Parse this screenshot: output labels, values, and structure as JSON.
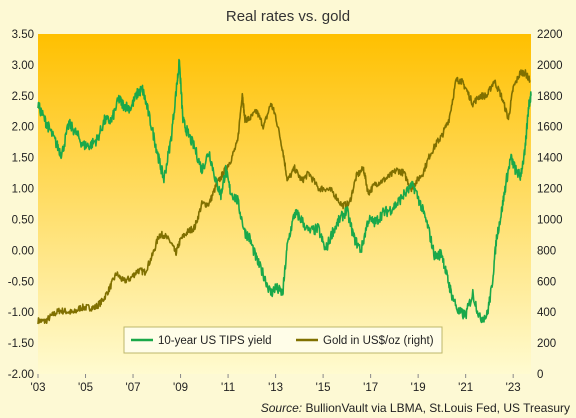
{
  "chart_data": {
    "type": "line",
    "title": "Real rates vs. gold",
    "source_label": "Source:",
    "source_text": "BullionVault via LBMA, St.Louis Fed, US Treasury",
    "x_ticks": [
      "'03",
      "'05",
      "'07",
      "'09",
      "'11",
      "'13",
      "'15",
      "'17",
      "'19",
      "'21",
      "'23"
    ],
    "x_range": [
      2003,
      2023.75
    ],
    "y_left": {
      "ylim": [
        -2.0,
        3.5
      ],
      "ticks": [
        "-2.00",
        "-1.50",
        "-1.00",
        "-0.50",
        "0.00",
        "0.50",
        "1.00",
        "1.50",
        "2.00",
        "2.50",
        "3.00",
        "3.50"
      ]
    },
    "y_right": {
      "ylim": [
        0,
        2200
      ],
      "ticks": [
        "0",
        "200",
        "400",
        "600",
        "800",
        "1000",
        "1200",
        "1400",
        "1600",
        "1800",
        "2000",
        "2200"
      ]
    },
    "legend_position": "bottom-center",
    "grid": false,
    "background_gradient": [
      "#ffc000",
      "#fffbd0"
    ],
    "series": [
      {
        "name": "10-year US TIPS yield",
        "axis": "left",
        "color": "#1aa84a",
        "x": [
          2003.0,
          2003.3,
          2003.5,
          2003.8,
          2004.0,
          2004.3,
          2004.6,
          2004.9,
          2005.2,
          2005.5,
          2005.8,
          2006.1,
          2006.4,
          2006.6,
          2006.9,
          2007.2,
          2007.4,
          2007.6,
          2007.9,
          2008.1,
          2008.3,
          2008.6,
          2008.85,
          2008.95,
          2009.1,
          2009.3,
          2009.6,
          2009.9,
          2010.2,
          2010.5,
          2010.7,
          2010.9,
          2011.1,
          2011.4,
          2011.7,
          2011.9,
          2012.2,
          2012.5,
          2012.8,
          2013.0,
          2013.3,
          2013.5,
          2013.8,
          2014.0,
          2014.4,
          2014.8,
          2015.1,
          2015.4,
          2015.7,
          2016.0,
          2016.3,
          2016.6,
          2016.9,
          2017.2,
          2017.5,
          2017.8,
          2018.1,
          2018.4,
          2018.8,
          2019.1,
          2019.4,
          2019.7,
          2020.0,
          2020.2,
          2020.4,
          2020.7,
          2021.0,
          2021.3,
          2021.6,
          2021.9,
          2022.1,
          2022.3,
          2022.5,
          2022.7,
          2022.9,
          2023.1,
          2023.3,
          2023.5,
          2023.65,
          2023.75
        ],
        "values": [
          2.35,
          2.1,
          1.95,
          1.7,
          1.55,
          2.05,
          1.9,
          1.7,
          1.7,
          1.8,
          2.1,
          2.1,
          2.45,
          2.35,
          2.3,
          2.55,
          2.6,
          2.3,
          1.8,
          1.45,
          1.15,
          1.8,
          2.7,
          3.05,
          2.1,
          1.9,
          1.65,
          1.3,
          1.6,
          1.1,
          0.9,
          1.3,
          0.95,
          0.8,
          0.3,
          0.2,
          -0.15,
          -0.4,
          -0.7,
          -0.6,
          -0.7,
          0.1,
          0.6,
          0.55,
          0.3,
          0.35,
          0.0,
          0.3,
          0.5,
          0.65,
          0.2,
          0.0,
          0.5,
          0.45,
          0.6,
          0.65,
          0.75,
          0.9,
          1.05,
          0.75,
          0.4,
          -0.1,
          -0.05,
          -0.4,
          -0.7,
          -1.0,
          -1.05,
          -0.7,
          -1.1,
          -1.05,
          -0.6,
          0.2,
          0.6,
          1.1,
          1.5,
          1.3,
          1.2,
          1.6,
          2.35,
          2.5
        ]
      },
      {
        "name": "Gold in US$/oz (right)",
        "axis": "right",
        "color": "#807000",
        "x": [
          2003.0,
          2003.3,
          2003.6,
          2003.9,
          2004.2,
          2004.5,
          2004.8,
          2005.1,
          2005.4,
          2005.7,
          2006.0,
          2006.3,
          2006.6,
          2006.9,
          2007.2,
          2007.5,
          2007.8,
          2008.1,
          2008.3,
          2008.6,
          2008.8,
          2009.0,
          2009.3,
          2009.6,
          2009.9,
          2010.2,
          2010.5,
          2010.8,
          2011.1,
          2011.4,
          2011.6,
          2011.7,
          2011.9,
          2012.2,
          2012.5,
          2012.8,
          2013.0,
          2013.3,
          2013.5,
          2013.8,
          2014.1,
          2014.4,
          2014.8,
          2015.1,
          2015.4,
          2015.8,
          2016.1,
          2016.4,
          2016.7,
          2016.9,
          2017.2,
          2017.5,
          2017.8,
          2018.1,
          2018.4,
          2018.7,
          2018.9,
          2019.2,
          2019.5,
          2019.8,
          2020.0,
          2020.3,
          2020.6,
          2020.8,
          2021.0,
          2021.3,
          2021.6,
          2021.9,
          2022.2,
          2022.5,
          2022.8,
          2023.0,
          2023.3,
          2023.5,
          2023.7
        ],
        "values": [
          345,
          340,
          380,
          410,
          405,
          395,
          430,
          430,
          430,
          470,
          550,
          650,
          600,
          620,
          670,
          660,
          760,
          900,
          900,
          850,
          780,
          870,
          920,
          950,
          1100,
          1100,
          1220,
          1300,
          1380,
          1500,
          1820,
          1650,
          1650,
          1700,
          1600,
          1750,
          1670,
          1450,
          1250,
          1330,
          1250,
          1300,
          1200,
          1200,
          1180,
          1090,
          1100,
          1280,
          1330,
          1170,
          1230,
          1250,
          1280,
          1320,
          1300,
          1200,
          1240,
          1300,
          1420,
          1500,
          1540,
          1650,
          1900,
          1900,
          1850,
          1750,
          1800,
          1800,
          1900,
          1800,
          1650,
          1850,
          1950,
          1950,
          1900
        ]
      }
    ]
  }
}
